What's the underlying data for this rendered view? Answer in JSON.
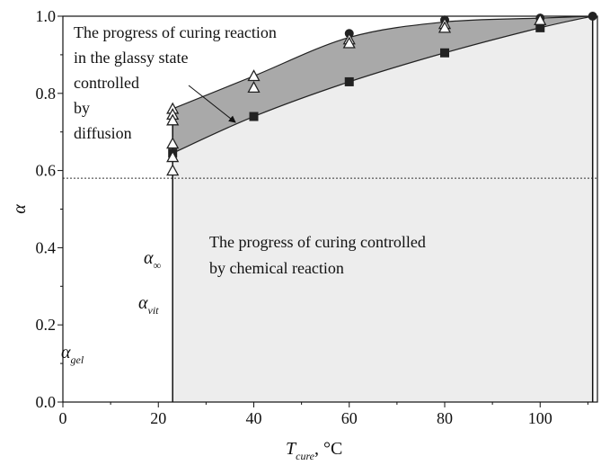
{
  "chart_data": {
    "type": "scatter",
    "xlabel": {
      "main": "T",
      "sub": "cure",
      "rest": ", °C"
    },
    "ylabel": "α",
    "xlim": [
      0,
      112
    ],
    "ylim": [
      0,
      1.0
    ],
    "xticks": [
      0,
      20,
      40,
      60,
      80,
      100
    ],
    "yticks": [
      {
        "value": 0,
        "label": "0.0"
      },
      0.2,
      0.4,
      0.6,
      0.8,
      {
        "value": 1,
        "label": "1.0"
      }
    ],
    "vlines": [
      23,
      111
    ],
    "hline": 0.58,
    "series": [
      {
        "kind": "curve",
        "color": "#222222",
        "x": [
          23,
          40,
          60,
          80,
          100,
          111
        ],
        "values": [
          0.76,
          0.845,
          0.945,
          0.985,
          0.995,
          1.0
        ]
      },
      {
        "kind": "curve",
        "color": "#222222",
        "x": [
          23,
          40,
          60,
          80,
          100,
          111
        ],
        "values": [
          0.645,
          0.74,
          0.83,
          0.905,
          0.97,
          1.0
        ]
      },
      {
        "kind": "circle",
        "color": "#222222",
        "x": [
          60,
          80,
          100,
          111
        ],
        "values": [
          0.955,
          0.99,
          0.995,
          1.0
        ]
      },
      {
        "kind": "square",
        "color": "#222222",
        "x": [
          23,
          40,
          60,
          80,
          100
        ],
        "values": [
          0.645,
          0.74,
          0.83,
          0.905,
          0.97
        ]
      },
      {
        "kind": "triangle",
        "color": "#222222",
        "x": [
          23,
          23,
          23,
          23,
          23,
          23,
          40,
          40,
          60,
          60,
          80,
          80,
          100
        ],
        "values": [
          0.76,
          0.745,
          0.73,
          0.67,
          0.635,
          0.6,
          0.845,
          0.815,
          0.94,
          0.93,
          0.98,
          0.97,
          0.99
        ]
      }
    ],
    "symbols": [
      {
        "main": "α",
        "sub": "∞"
      },
      {
        "main": "α",
        "sub": "vit"
      },
      {
        "main": "α",
        "sub": "gel"
      }
    ],
    "annotations": [
      "The progress of curing reaction",
      "in the glassy state",
      "controlled",
      "by",
      "diffusion",
      "The progress of curing controlled",
      "by chemical reaction"
    ]
  }
}
